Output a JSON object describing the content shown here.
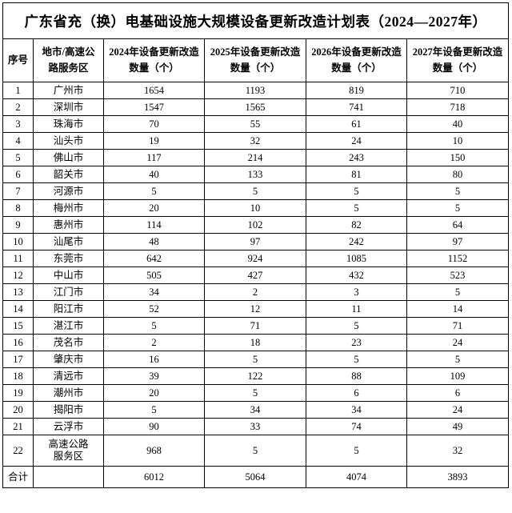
{
  "title": "广东省充（换）电基础设施大规模设备更新改造计划表（2024—2027年）",
  "table": {
    "columns": [
      "序号",
      "地市/高速公\n路服务区",
      "2024年设备更新改造\n数量（个）",
      "2025年设备更新改造\n数量（个）",
      "2026年设备更新改造\n数量（个）",
      "2027年设备更新改造\n数量（个）"
    ],
    "rows": [
      {
        "seq": "1",
        "name": "广州市",
        "values": [
          "1654",
          "1193",
          "819",
          "710"
        ]
      },
      {
        "seq": "2",
        "name": "深圳市",
        "values": [
          "1547",
          "1565",
          "741",
          "718"
        ]
      },
      {
        "seq": "3",
        "name": "珠海市",
        "values": [
          "70",
          "55",
          "61",
          "40"
        ]
      },
      {
        "seq": "4",
        "name": "汕头市",
        "values": [
          "19",
          "32",
          "24",
          "10"
        ]
      },
      {
        "seq": "5",
        "name": "佛山市",
        "values": [
          "117",
          "214",
          "243",
          "150"
        ]
      },
      {
        "seq": "6",
        "name": "韶关市",
        "values": [
          "40",
          "133",
          "81",
          "80"
        ]
      },
      {
        "seq": "7",
        "name": "河源市",
        "values": [
          "5",
          "5",
          "5",
          "5"
        ]
      },
      {
        "seq": "8",
        "name": "梅州市",
        "values": [
          "20",
          "10",
          "5",
          "5"
        ]
      },
      {
        "seq": "9",
        "name": "惠州市",
        "values": [
          "114",
          "102",
          "82",
          "64"
        ]
      },
      {
        "seq": "10",
        "name": "汕尾市",
        "values": [
          "48",
          "97",
          "242",
          "97"
        ]
      },
      {
        "seq": "11",
        "name": "东莞市",
        "values": [
          "642",
          "924",
          "1085",
          "1152"
        ]
      },
      {
        "seq": "12",
        "name": "中山市",
        "values": [
          "505",
          "427",
          "432",
          "523"
        ]
      },
      {
        "seq": "13",
        "name": "江门市",
        "values": [
          "34",
          "2",
          "3",
          "5"
        ]
      },
      {
        "seq": "14",
        "name": "阳江市",
        "values": [
          "52",
          "12",
          "11",
          "14"
        ]
      },
      {
        "seq": "15",
        "name": "湛江市",
        "values": [
          "5",
          "71",
          "5",
          "71"
        ]
      },
      {
        "seq": "16",
        "name": "茂名市",
        "values": [
          "2",
          "18",
          "23",
          "24"
        ]
      },
      {
        "seq": "17",
        "name": "肇庆市",
        "values": [
          "16",
          "5",
          "5",
          "5"
        ]
      },
      {
        "seq": "18",
        "name": "清远市",
        "values": [
          "39",
          "122",
          "88",
          "109"
        ]
      },
      {
        "seq": "19",
        "name": "潮州市",
        "values": [
          "20",
          "5",
          "6",
          "6"
        ]
      },
      {
        "seq": "20",
        "name": "揭阳市",
        "values": [
          "5",
          "34",
          "34",
          "24"
        ]
      },
      {
        "seq": "21",
        "name": "云浮市",
        "values": [
          "90",
          "33",
          "74",
          "49"
        ]
      },
      {
        "seq": "22",
        "name": "高速公路\n服务区",
        "values": [
          "968",
          "5",
          "5",
          "32"
        ]
      }
    ],
    "total": {
      "label": "合计",
      "name": "",
      "values": [
        "6012",
        "5064",
        "4074",
        "3893"
      ]
    }
  }
}
